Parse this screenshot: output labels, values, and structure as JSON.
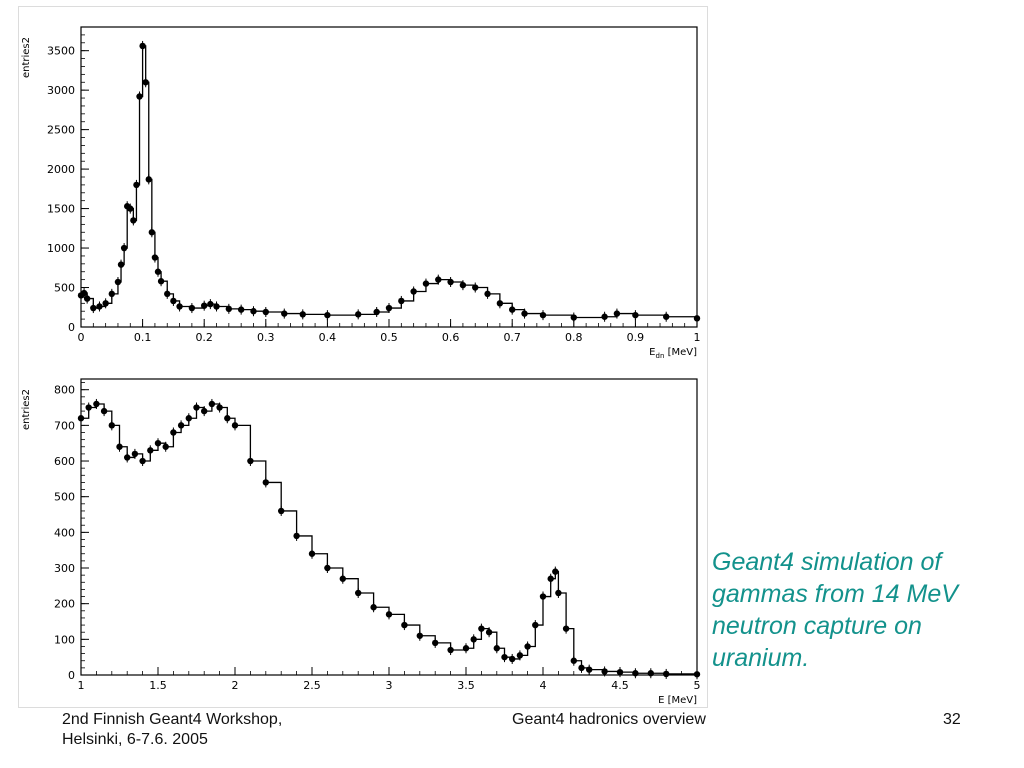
{
  "slide": {
    "caption_lines": [
      "Geant4 simulation of",
      "gammas from 14 MeV",
      "neutron capture on",
      "uranium."
    ],
    "footer": {
      "left_line1": "2nd Finnish Geant4 Workshop,",
      "left_line2": "Helsinki, 6-7.6. 2005",
      "center": "Geant4 hadronics overview",
      "page_number": "32"
    },
    "colors": {
      "caption": "#13928c",
      "plot_line": "#000000",
      "background": "#ffffff"
    }
  },
  "chart_data": [
    {
      "type": "line",
      "ylabel": "entries2",
      "xlabel": "E",
      "xlabel_sub": "dn",
      "xlabel_unit": "[MeV]",
      "xlim": [
        0,
        1
      ],
      "ylim": [
        0,
        3800
      ],
      "x_ticks": [
        0,
        0.1,
        0.2,
        0.3,
        0.4,
        0.5,
        0.6,
        0.7,
        0.8,
        0.9,
        1
      ],
      "x_tick_labels": [
        "0",
        "0.1",
        "0.2",
        "0.3",
        "0.4",
        "0.5",
        "0.6",
        "0.7",
        "0.8",
        "0.9",
        "1"
      ],
      "y_ticks": [
        0,
        500,
        1000,
        1500,
        2000,
        2500,
        3000,
        3500
      ],
      "y_tick_labels": [
        "0",
        "500",
        "1000",
        "1500",
        "2000",
        "2500",
        "3000",
        "3500"
      ],
      "grid": false,
      "series": [
        {
          "style": "histogram with error markers",
          "x": [
            0.0,
            0.005,
            0.01,
            0.02,
            0.03,
            0.04,
            0.05,
            0.06,
            0.065,
            0.07,
            0.075,
            0.08,
            0.085,
            0.09,
            0.095,
            0.1,
            0.105,
            0.11,
            0.115,
            0.12,
            0.125,
            0.13,
            0.14,
            0.15,
            0.16,
            0.18,
            0.2,
            0.21,
            0.22,
            0.24,
            0.26,
            0.28,
            0.3,
            0.33,
            0.36,
            0.4,
            0.45,
            0.48,
            0.5,
            0.52,
            0.54,
            0.56,
            0.58,
            0.6,
            0.62,
            0.64,
            0.66,
            0.68,
            0.7,
            0.72,
            0.75,
            0.8,
            0.85,
            0.87,
            0.9,
            0.95,
            1.0
          ],
          "y": [
            400,
            430,
            360,
            240,
            260,
            300,
            420,
            570,
            790,
            1000,
            1530,
            1500,
            1350,
            1800,
            2920,
            3560,
            3100,
            1870,
            1200,
            880,
            700,
            580,
            420,
            330,
            260,
            240,
            270,
            290,
            260,
            230,
            220,
            200,
            190,
            170,
            160,
            150,
            160,
            190,
            240,
            330,
            450,
            550,
            600,
            570,
            530,
            500,
            420,
            300,
            220,
            170,
            150,
            120,
            130,
            170,
            150,
            130,
            110
          ]
        }
      ]
    },
    {
      "type": "line",
      "ylabel": "entries2",
      "xlabel": "E",
      "xlabel_unit": "[MeV]",
      "xlim": [
        1,
        5
      ],
      "ylim": [
        0,
        830
      ],
      "x_ticks": [
        1,
        1.5,
        2,
        2.5,
        3,
        3.5,
        4,
        4.5,
        5
      ],
      "x_tick_labels": [
        "1",
        "1.5",
        "2",
        "2.5",
        "3",
        "3.5",
        "4",
        "4.5",
        "5"
      ],
      "y_ticks": [
        0,
        100,
        200,
        300,
        400,
        500,
        600,
        700,
        800
      ],
      "y_tick_labels": [
        "0",
        "100",
        "200",
        "300",
        "400",
        "500",
        "600",
        "700",
        "800"
      ],
      "grid": false,
      "series": [
        {
          "style": "histogram with error markers",
          "x": [
            1.0,
            1.05,
            1.1,
            1.15,
            1.2,
            1.25,
            1.3,
            1.35,
            1.4,
            1.45,
            1.5,
            1.55,
            1.6,
            1.65,
            1.7,
            1.75,
            1.8,
            1.85,
            1.9,
            1.95,
            2.0,
            2.1,
            2.2,
            2.3,
            2.4,
            2.5,
            2.6,
            2.7,
            2.8,
            2.9,
            3.0,
            3.1,
            3.2,
            3.3,
            3.4,
            3.5,
            3.55,
            3.6,
            3.65,
            3.7,
            3.75,
            3.8,
            3.85,
            3.9,
            3.95,
            4.0,
            4.05,
            4.08,
            4.1,
            4.15,
            4.2,
            4.25,
            4.3,
            4.4,
            4.5,
            4.6,
            4.7,
            4.8,
            5.0
          ],
          "y": [
            720,
            750,
            760,
            740,
            700,
            640,
            610,
            620,
            600,
            630,
            650,
            640,
            680,
            700,
            720,
            750,
            740,
            760,
            750,
            720,
            700,
            600,
            540,
            460,
            390,
            340,
            300,
            270,
            230,
            190,
            170,
            140,
            110,
            90,
            70,
            75,
            100,
            130,
            120,
            75,
            50,
            45,
            55,
            80,
            140,
            220,
            270,
            290,
            230,
            130,
            40,
            20,
            15,
            10,
            8,
            5,
            5,
            3,
            2
          ]
        }
      ]
    }
  ]
}
